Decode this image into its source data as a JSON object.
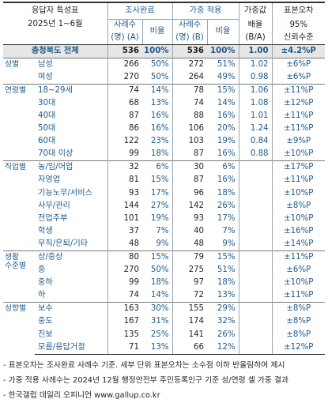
{
  "header": {
    "segment_title": "응답자 특성표",
    "segment_date": "2025년 1~6월",
    "surveyed": "조사완료",
    "weighted": "가중 적용",
    "weight_mult_1": "가중값",
    "weight_mult_2": "배율",
    "weight_mult_3": "(B/A)",
    "moe_1": "표본오차",
    "moe_2": "95%",
    "moe_3": "신뢰수준",
    "cases_a_1": "사례수",
    "cases_a_2": "(명) (A)",
    "ratio_label": "비율",
    "cases_b_1": "사례수",
    "cases_b_2": "(명) (B)",
    "ratio_label_b": "비율"
  },
  "total": {
    "label": "충청북도 전체",
    "a": "536",
    "a_pct": "100%",
    "b": "536",
    "b_pct": "100%",
    "mult": "1.00",
    "moe": "±4.2%P"
  },
  "groups": [
    {
      "label": "성별",
      "rows": [
        {
          "label": "남성",
          "a": "266",
          "a_pct": "50%",
          "b": "272",
          "b_pct": "51%",
          "mult": "1.02",
          "moe": "±6%P"
        },
        {
          "label": "여성",
          "a": "270",
          "a_pct": "50%",
          "b": "264",
          "b_pct": "49%",
          "mult": "0.98",
          "moe": "±6%P"
        }
      ]
    },
    {
      "label": "연령별",
      "rows": [
        {
          "label": "18~29세",
          "a": "74",
          "a_pct": "14%",
          "b": "78",
          "b_pct": "15%",
          "mult": "1.06",
          "moe": "±11%P"
        },
        {
          "label": "30대",
          "a": "68",
          "a_pct": "13%",
          "b": "74",
          "b_pct": "14%",
          "mult": "1.08",
          "moe": "±12%P"
        },
        {
          "label": "40대",
          "a": "87",
          "a_pct": "16%",
          "b": "88",
          "b_pct": "16%",
          "mult": "1.01",
          "moe": "±11%P"
        },
        {
          "label": "50대",
          "a": "86",
          "a_pct": "16%",
          "b": "106",
          "b_pct": "20%",
          "mult": "1.24",
          "moe": "±11%P"
        },
        {
          "label": "60대",
          "a": "122",
          "a_pct": "23%",
          "b": "103",
          "b_pct": "19%",
          "mult": "0.84",
          "moe": "±9%P"
        },
        {
          "label": "70대 이상",
          "a": "99",
          "a_pct": "18%",
          "b": "87",
          "b_pct": "16%",
          "mult": "0.88",
          "moe": "±10%P"
        }
      ]
    },
    {
      "label": "직업별",
      "rows": [
        {
          "label": "농/임/어업",
          "a": "32",
          "a_pct": "6%",
          "b": "30",
          "b_pct": "6%",
          "mult": "",
          "moe": "±17%P"
        },
        {
          "label": "자영업",
          "a": "81",
          "a_pct": "15%",
          "b": "87",
          "b_pct": "16%",
          "mult": "",
          "moe": "±11%P"
        },
        {
          "label": "기능노무/서비스",
          "a": "93",
          "a_pct": "17%",
          "b": "96",
          "b_pct": "18%",
          "mult": "",
          "moe": "±10%P"
        },
        {
          "label": "사무/관리",
          "a": "144",
          "a_pct": "27%",
          "b": "142",
          "b_pct": "26%",
          "mult": "",
          "moe": "±8%P"
        },
        {
          "label": "전업주부",
          "a": "101",
          "a_pct": "19%",
          "b": "93",
          "b_pct": "17%",
          "mult": "",
          "moe": "±10%P"
        },
        {
          "label": "학생",
          "a": "37",
          "a_pct": "7%",
          "b": "40",
          "b_pct": "7%",
          "mult": "",
          "moe": "±16%P"
        },
        {
          "label": "무직/은퇴/기타",
          "a": "48",
          "a_pct": "9%",
          "b": "48",
          "b_pct": "9%",
          "mult": "",
          "moe": "±14%P"
        }
      ]
    },
    {
      "label": "생활\n수준별",
      "rows": [
        {
          "label": "상/중상",
          "a": "80",
          "a_pct": "15%",
          "b": "79",
          "b_pct": "15%",
          "mult": "",
          "moe": "±11%P"
        },
        {
          "label": "중",
          "a": "270",
          "a_pct": "50%",
          "b": "275",
          "b_pct": "51%",
          "mult": "",
          "moe": "±6%P"
        },
        {
          "label": "중하",
          "a": "99",
          "a_pct": "18%",
          "b": "97",
          "b_pct": "18%",
          "mult": "",
          "moe": "±10%P"
        },
        {
          "label": "하",
          "a": "74",
          "a_pct": "14%",
          "b": "72",
          "b_pct": "13%",
          "mult": "",
          "moe": "±11%P"
        }
      ]
    },
    {
      "label": "성향별",
      "rows": [
        {
          "label": "보수",
          "a": "163",
          "a_pct": "30%",
          "b": "155",
          "b_pct": "29%",
          "mult": "",
          "moe": "±8%P"
        },
        {
          "label": "중도",
          "a": "167",
          "a_pct": "31%",
          "b": "174",
          "b_pct": "32%",
          "mult": "",
          "moe": "±8%P"
        },
        {
          "label": "진보",
          "a": "135",
          "a_pct": "25%",
          "b": "141",
          "b_pct": "26%",
          "mult": "",
          "moe": "±8%P"
        },
        {
          "label": "모름/응답거절",
          "a": "71",
          "a_pct": "13%",
          "b": "66",
          "b_pct": "12%",
          "mult": "",
          "moe": "±12%P"
        }
      ]
    }
  ],
  "footnotes": [
    "- 표본오차는 조사완료 사례수 기준. 세부 단위 표본오차는 소수점 이하 반올림하여 제시",
    "- 가중 적용 사례수는 2024년 12월 행정안전부 주민등록인구 기준 성/연령 셀 가중 결과",
    "- 한국갤럽 데일리 오피니언 www.gallup.co.kr"
  ]
}
